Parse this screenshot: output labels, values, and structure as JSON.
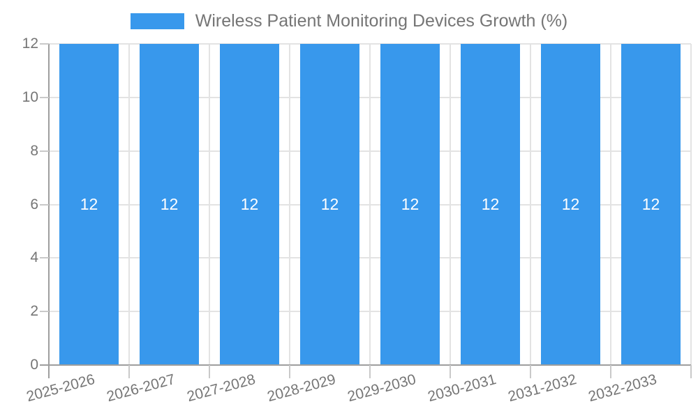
{
  "colors": {
    "bar": "#3898EC",
    "grid": "#E3E3E3",
    "axis": "#9E9E9E",
    "tick": "#C9C9C9",
    "text": "#757575",
    "bar_value_text": "#FFFFFF",
    "background": "#FFFFFF"
  },
  "chart_data": {
    "type": "bar",
    "title": "Wireless Patient Monitoring Devices Growth (%)",
    "categories": [
      "2025-2026",
      "2026-2027",
      "2027-2028",
      "2028-2029",
      "2029-2030",
      "2030-2031",
      "2031-2032",
      "2032-2033"
    ],
    "series": [
      {
        "name": "Wireless Patient Monitoring Devices Growth (%)",
        "values": [
          12,
          12,
          12,
          12,
          12,
          12,
          12,
          12
        ]
      }
    ],
    "bar_value_labels": [
      "12",
      "12",
      "12",
      "12",
      "12",
      "12",
      "12",
      "12"
    ],
    "xlabel": "",
    "ylabel": "",
    "ylim": [
      0,
      12
    ],
    "yticks": [
      0,
      2,
      4,
      6,
      8,
      10,
      12
    ],
    "grid": "on",
    "legend_position": "top-center"
  }
}
